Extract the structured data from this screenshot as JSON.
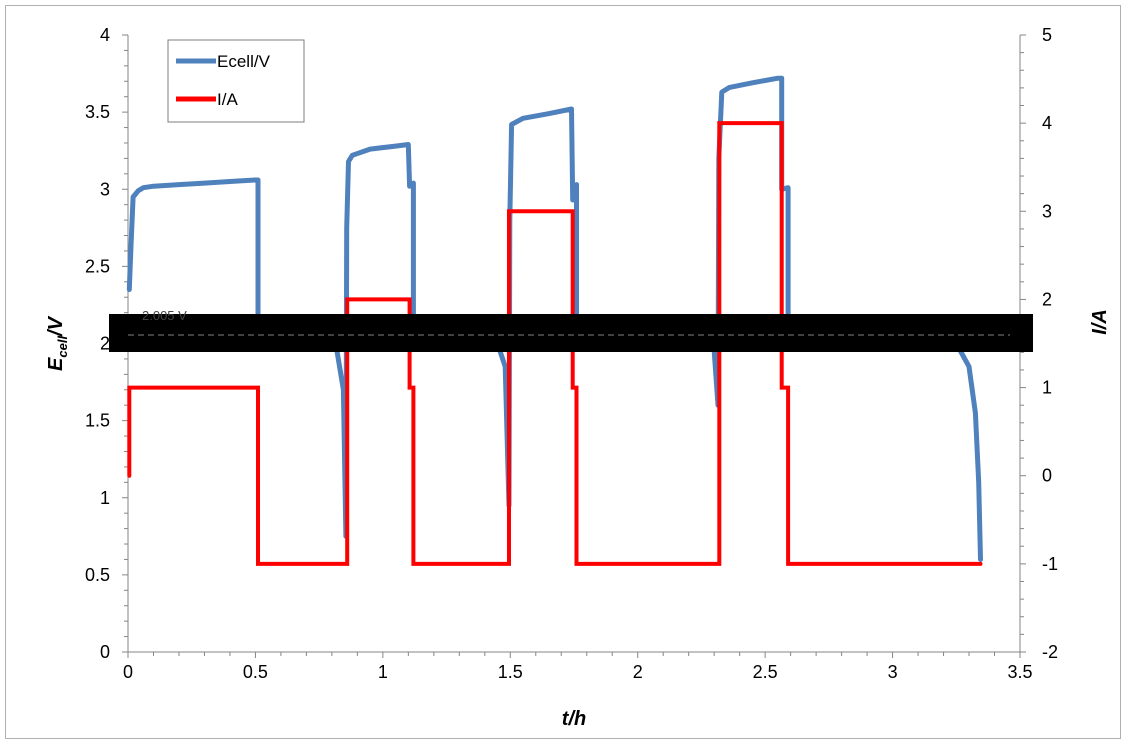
{
  "chart_data": {
    "type": "line",
    "title": "",
    "xlabel": "t/h",
    "ylabel_left": {
      "main": "E",
      "sub": "cell",
      "rest": "/V"
    },
    "ylabel_right": "I/A",
    "xlim": [
      0,
      3.5
    ],
    "ylim_left": [
      0,
      4
    ],
    "ylim_right": [
      -2,
      5
    ],
    "x_ticks": [
      "0",
      "0.5",
      "1",
      "1.5",
      "2",
      "2.5",
      "3",
      "3.5"
    ],
    "y_left_ticks": [
      "0",
      "0.5",
      "1",
      "1.5",
      "2",
      "2.5",
      "3",
      "3.5",
      "4"
    ],
    "y_right_ticks": [
      "-2",
      "-1",
      "0",
      "1",
      "2",
      "3",
      "4",
      "5"
    ],
    "grid": false,
    "legend_position": "top-left",
    "colors": {
      "ecell": "#4f81bd",
      "current": "#ff0000",
      "band": "#000000"
    },
    "annotation": {
      "text": "2.005 V",
      "y": 2.005,
      "note": "dashed reference line partially covered by black band"
    },
    "series": [
      {
        "name": "Ecell/V",
        "axis": "left",
        "points": [
          [
            0.005,
            2.35
          ],
          [
            0.012,
            2.65
          ],
          [
            0.02,
            2.95
          ],
          [
            0.04,
            2.99
          ],
          [
            0.06,
            3.01
          ],
          [
            0.1,
            3.02
          ],
          [
            0.2,
            3.03
          ],
          [
            0.3,
            3.04
          ],
          [
            0.4,
            3.05
          ],
          [
            0.5,
            3.06
          ],
          [
            0.51,
            3.06
          ],
          [
            0.51,
            2.17
          ],
          [
            0.6,
            2.14
          ],
          [
            0.7,
            2.1
          ],
          [
            0.78,
            2.05
          ],
          [
            0.82,
            1.95
          ],
          [
            0.845,
            1.7
          ],
          [
            0.855,
            0.75
          ],
          [
            0.858,
            2.75
          ],
          [
            0.865,
            3.18
          ],
          [
            0.88,
            3.22
          ],
          [
            0.95,
            3.26
          ],
          [
            1.05,
            3.28
          ],
          [
            1.1,
            3.29
          ],
          [
            1.105,
            3.02
          ],
          [
            1.12,
            3.04
          ],
          [
            1.12,
            2.16
          ],
          [
            1.2,
            2.14
          ],
          [
            1.3,
            2.1
          ],
          [
            1.4,
            2.06
          ],
          [
            1.45,
            2.0
          ],
          [
            1.48,
            1.85
          ],
          [
            1.495,
            0.95
          ],
          [
            1.498,
            2.8
          ],
          [
            1.505,
            3.42
          ],
          [
            1.55,
            3.46
          ],
          [
            1.65,
            3.49
          ],
          [
            1.74,
            3.52
          ],
          [
            1.745,
            2.93
          ],
          [
            1.76,
            3.03
          ],
          [
            1.76,
            2.14
          ],
          [
            1.9,
            2.12
          ],
          [
            2.1,
            2.09
          ],
          [
            2.25,
            2.05
          ],
          [
            2.3,
            1.95
          ],
          [
            2.315,
            1.6
          ],
          [
            2.318,
            3.2
          ],
          [
            2.33,
            3.63
          ],
          [
            2.36,
            3.66
          ],
          [
            2.45,
            3.69
          ],
          [
            2.55,
            3.72
          ],
          [
            2.565,
            3.72
          ],
          [
            2.565,
            3.0
          ],
          [
            2.59,
            3.01
          ],
          [
            2.59,
            2.15
          ],
          [
            2.8,
            2.12
          ],
          [
            3.0,
            2.1
          ],
          [
            3.15,
            2.07
          ],
          [
            3.25,
            2.0
          ],
          [
            3.3,
            1.85
          ],
          [
            3.325,
            1.55
          ],
          [
            3.338,
            1.1
          ],
          [
            3.345,
            0.6
          ]
        ]
      },
      {
        "name": "I/A",
        "axis": "right",
        "points": [
          [
            0.005,
            0.0
          ],
          [
            0.005,
            1.0
          ],
          [
            0.51,
            1.0
          ],
          [
            0.51,
            -1.0
          ],
          [
            0.86,
            -1.0
          ],
          [
            0.86,
            2.0
          ],
          [
            1.105,
            2.0
          ],
          [
            1.105,
            1.0
          ],
          [
            1.12,
            1.0
          ],
          [
            1.12,
            -1.0
          ],
          [
            1.495,
            -1.0
          ],
          [
            1.495,
            3.0
          ],
          [
            1.745,
            3.0
          ],
          [
            1.745,
            1.0
          ],
          [
            1.76,
            1.0
          ],
          [
            1.76,
            -1.0
          ],
          [
            2.32,
            -1.0
          ],
          [
            2.32,
            4.0
          ],
          [
            2.565,
            4.0
          ],
          [
            2.565,
            1.0
          ],
          [
            2.59,
            1.0
          ],
          [
            2.59,
            -1.0
          ],
          [
            3.345,
            -1.0
          ]
        ]
      }
    ]
  }
}
